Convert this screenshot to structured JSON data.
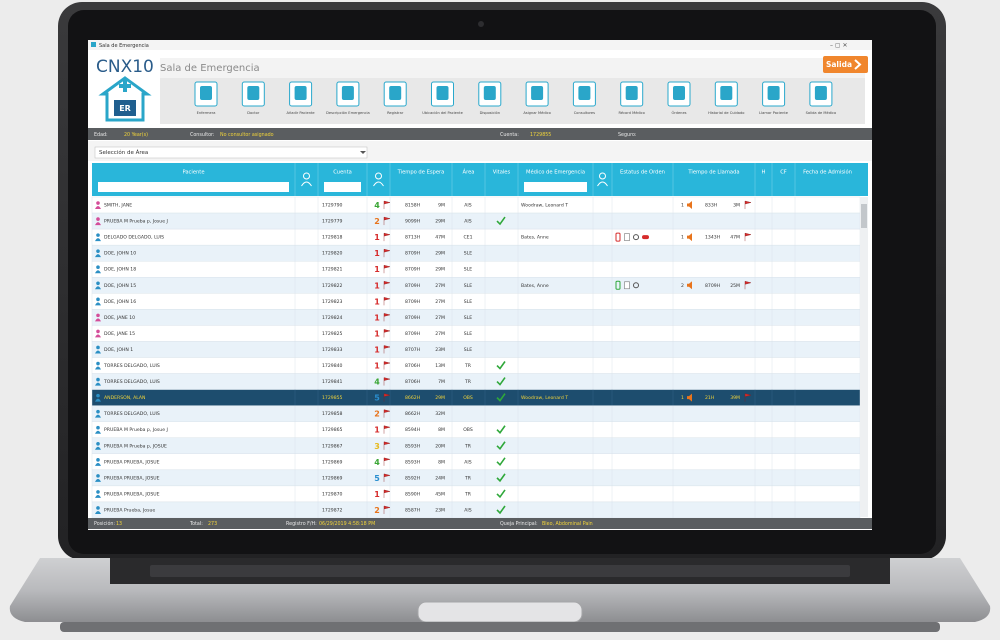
{
  "window": {
    "title": "Sala de Emergencia"
  },
  "header": {
    "logo": "CNX10",
    "badge": "ER",
    "title": "Sala de Emergencia",
    "exit": "Salida"
  },
  "toolbar": [
    "Enfermera",
    "Doctor",
    "Añadir Paciente",
    "Descripción Emergencia",
    "Registrar",
    "Ubicación del Paciente",
    "Disposición",
    "Asignar Médico",
    "Consultores",
    "Récord Médico",
    "Órdenes",
    "Historial de Cuidado",
    "Llamar Paciente",
    "Salida de Médico"
  ],
  "info_bar": [
    {
      "label": "Edad:",
      "value": "20 Year(s)"
    },
    {
      "label": "Consultor:",
      "value": "No consultor asignado"
    },
    {
      "label": "Cuenta:",
      "value": "1729855"
    },
    {
      "label": "Seguro:",
      "value": ""
    }
  ],
  "area_selector": "Selección de Área",
  "table": {
    "columns": [
      "Paciente",
      "",
      "Cuenta",
      "",
      "Tiempo de Espera",
      "Área",
      "Vitales",
      "Médico de Emergencia",
      "",
      "Estatus de Orden",
      "Tiempo de Llamada",
      "H",
      "CF",
      "Fecha de Admisión"
    ],
    "rows": [
      {
        "icon": "female",
        "patient": "SMITH, JANE",
        "account": "1729790",
        "priority": 4,
        "wait": "8158H",
        "minutes": "9M",
        "area": "AIS",
        "vitals": false,
        "doctor": "Woodraw, Leonard T",
        "orders": [],
        "call": {
          "count": "1",
          "time": "833H",
          "minutes": "3M"
        }
      },
      {
        "icon": "female",
        "patient": "PRUEBA M Prueba p, Josue J",
        "account": "1729779",
        "priority": 2,
        "wait": "9099H",
        "minutes": "29M",
        "area": "AIS",
        "vitals": true,
        "doctor": "",
        "orders": [],
        "call": null
      },
      {
        "icon": "male",
        "patient": "DELGADO DELGADO, LUIS",
        "account": "1729818",
        "priority": 1,
        "wait": "8713H",
        "minutes": "47M",
        "area": "CE1",
        "vitals": false,
        "doctor": "Bates, Anne",
        "orders": [
          "red",
          "doc",
          "ring",
          "pill"
        ],
        "call": {
          "count": "1",
          "time": "1343H",
          "minutes": "47M"
        }
      },
      {
        "icon": "male",
        "patient": "DOE, JOHN 10",
        "account": "1729820",
        "priority": 1,
        "wait": "8709H",
        "minutes": "29M",
        "area": "SLE",
        "vitals": false,
        "doctor": "",
        "orders": [],
        "call": null
      },
      {
        "icon": "male",
        "patient": "DOE, JOHN 18",
        "account": "1729821",
        "priority": 1,
        "wait": "8709H",
        "minutes": "29M",
        "area": "SLE",
        "vitals": false,
        "doctor": "",
        "orders": [],
        "call": null
      },
      {
        "icon": "male",
        "patient": "DOE, JOHN 15",
        "account": "1729822",
        "priority": 1,
        "wait": "8709H",
        "minutes": "27M",
        "area": "SLE",
        "vitals": false,
        "doctor": "Bates, Anne",
        "orders": [
          "green",
          "doc",
          "ring"
        ],
        "call": {
          "count": "2",
          "time": "8709H",
          "minutes": "25M"
        }
      },
      {
        "icon": "male",
        "patient": "DOE, JOHN 16",
        "account": "1729823",
        "priority": 1,
        "wait": "8709H",
        "minutes": "27M",
        "area": "SLE",
        "vitals": false,
        "doctor": "",
        "orders": [],
        "call": null
      },
      {
        "icon": "female",
        "patient": "DOE, JANE 10",
        "account": "1729824",
        "priority": 1,
        "wait": "8709H",
        "minutes": "27M",
        "area": "SLE",
        "vitals": false,
        "doctor": "",
        "orders": [],
        "call": null
      },
      {
        "icon": "female",
        "patient": "DOE, JANE 15",
        "account": "1729825",
        "priority": 1,
        "wait": "8709H",
        "minutes": "27M",
        "area": "SLE",
        "vitals": false,
        "doctor": "",
        "orders": [],
        "call": null
      },
      {
        "icon": "male",
        "patient": "DOE, JOHN 1",
        "account": "1729833",
        "priority": 1,
        "wait": "8707H",
        "minutes": "23M",
        "area": "SLE",
        "vitals": false,
        "doctor": "",
        "orders": [],
        "call": null
      },
      {
        "icon": "male",
        "patient": "TORRES DELGADO, LUIS",
        "account": "1729840",
        "priority": 1,
        "wait": "8706H",
        "minutes": "13M",
        "area": "TR",
        "vitals": true,
        "doctor": "",
        "orders": [],
        "call": null
      },
      {
        "icon": "male",
        "patient": "TORRES DELGADO, LUIS",
        "account": "1729841",
        "priority": 4,
        "wait": "8706H",
        "minutes": "7M",
        "area": "TR",
        "vitals": true,
        "doctor": "",
        "orders": [],
        "call": null
      },
      {
        "icon": "male",
        "patient": "ANDERSON, ALAN",
        "account": "1729855",
        "priority": 5,
        "wait": "8662H",
        "minutes": "29M",
        "area": "OBS",
        "vitals": true,
        "doctor": "Woodraw, Leonard T",
        "orders": [],
        "call": {
          "count": "1",
          "time": "21H",
          "minutes": "39M"
        },
        "selected": true
      },
      {
        "icon": "male",
        "patient": "TORRES DELGADO, LUIS",
        "account": "1729858",
        "priority": 2,
        "wait": "8662H",
        "minutes": "32M",
        "area": "",
        "vitals": false,
        "doctor": "",
        "orders": [],
        "call": null
      },
      {
        "icon": "male",
        "patient": "PRUEBA M Prueba p, Josue J",
        "account": "1729865",
        "priority": 1,
        "wait": "8594H",
        "minutes": "8M",
        "area": "OBS",
        "vitals": true,
        "doctor": "",
        "orders": [],
        "call": null
      },
      {
        "icon": "male",
        "patient": "PRUEBA M Prueba p, JOSUE",
        "account": "1729867",
        "priority": 3,
        "wait": "8593H",
        "minutes": "20M",
        "area": "TR",
        "vitals": true,
        "doctor": "",
        "orders": [],
        "call": null
      },
      {
        "icon": "male",
        "patient": "PRUEBA PRUEBA, JOSUE",
        "account": "1729869",
        "priority": 4,
        "wait": "8593H",
        "minutes": "8M",
        "area": "AIS",
        "vitals": true,
        "doctor": "",
        "orders": [],
        "call": null
      },
      {
        "icon": "male",
        "patient": "PRUEBA PRUEBA, JOSUE",
        "account": "1729869",
        "priority": 5,
        "wait": "8592H",
        "minutes": "24M",
        "area": "TR",
        "vitals": true,
        "doctor": "",
        "orders": [],
        "call": null
      },
      {
        "icon": "male",
        "patient": "PRUEBA PRUEBA, JOSUE",
        "account": "1729870",
        "priority": 1,
        "wait": "8590H",
        "minutes": "45M",
        "area": "TR",
        "vitals": true,
        "doctor": "",
        "orders": [],
        "call": null
      },
      {
        "icon": "male",
        "patient": "PRUEBA Prueba, Josue",
        "account": "1729872",
        "priority": 2,
        "wait": "8587H",
        "minutes": "23M",
        "area": "AIS",
        "vitals": true,
        "doctor": "",
        "orders": [],
        "call": null
      }
    ]
  },
  "status_bar": [
    {
      "label": "Posición:",
      "value": "13"
    },
    {
      "label": "Total:",
      "value": "273"
    },
    {
      "label": "Registro F/H:",
      "value": "06/29/2019 4:58:18 PM"
    },
    {
      "label": "Queja Principal:",
      "value": "Bleo, Abdominal Pain"
    }
  ]
}
